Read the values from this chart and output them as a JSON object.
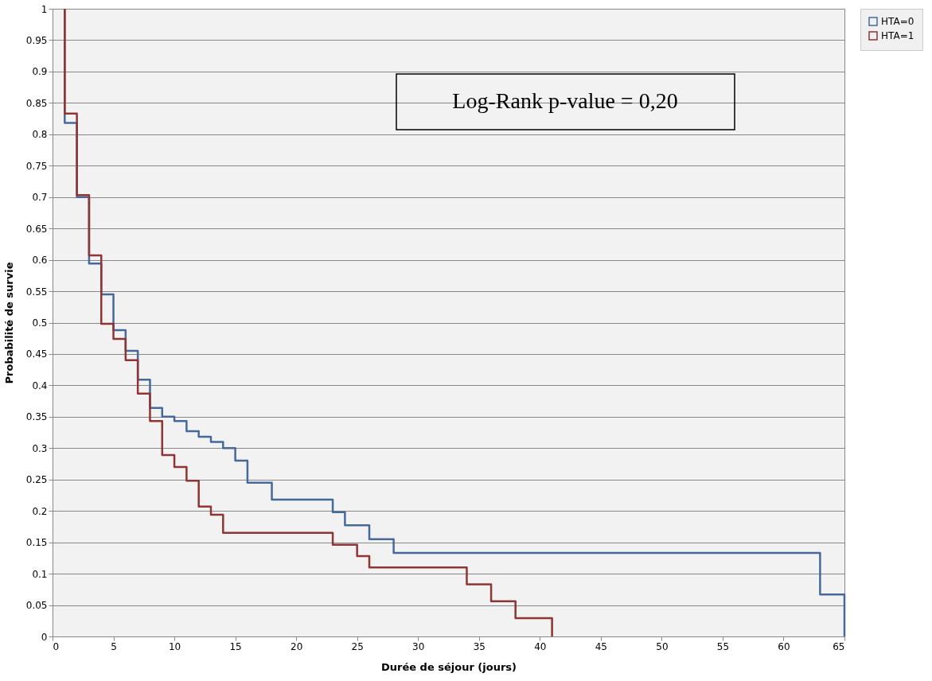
{
  "chart_data": {
    "type": "step",
    "xlabel": "Durée de séjour (jours)",
    "ylabel": "Probabilité de survie",
    "xlim": [
      0,
      65
    ],
    "xticks": [
      0,
      5,
      10,
      15,
      20,
      25,
      30,
      35,
      40,
      45,
      50,
      55,
      60,
      65
    ],
    "ylim": [
      0,
      1
    ],
    "yticks": [
      0,
      0.05,
      0.1,
      0.15,
      0.2,
      0.25,
      0.3,
      0.35,
      0.4,
      0.45,
      0.5,
      0.55,
      0.6,
      0.65,
      0.7,
      0.75,
      0.8,
      0.85,
      0.9,
      0.95,
      1
    ],
    "grid": "y",
    "legend": "right",
    "line_style": "solid",
    "marker": "none",
    "annotations": [
      "Log-Rank p-value = 0,20"
    ],
    "series": [
      {
        "name": "HTA=0",
        "color": "#46699a",
        "x": [
          1,
          1,
          2,
          3,
          4,
          5,
          6,
          7,
          8,
          9,
          10,
          11,
          12,
          13,
          14,
          15,
          16,
          18,
          23,
          24,
          26,
          28,
          63,
          65,
          65
        ],
        "values": [
          1,
          0.818,
          0.7,
          0.594,
          0.545,
          0.488,
          0.455,
          0.409,
          0.364,
          0.35,
          0.343,
          0.327,
          0.318,
          0.31,
          0.3,
          0.28,
          0.245,
          0.218,
          0.198,
          0.177,
          0.155,
          0.133,
          0.067,
          0.067,
          0
        ]
      },
      {
        "name": "HTA=1",
        "color": "#8e3535",
        "x": [
          1,
          1,
          2,
          3,
          4,
          5,
          6,
          7,
          8,
          9,
          10,
          11,
          12,
          13,
          14,
          23,
          25,
          26,
          34,
          36,
          38,
          41,
          41
        ],
        "values": [
          1,
          0.833,
          0.703,
          0.607,
          0.498,
          0.474,
          0.44,
          0.387,
          0.343,
          0.289,
          0.27,
          0.248,
          0.207,
          0.194,
          0.165,
          0.146,
          0.128,
          0.11,
          0.083,
          0.056,
          0.029,
          0.029,
          0
        ]
      }
    ]
  }
}
